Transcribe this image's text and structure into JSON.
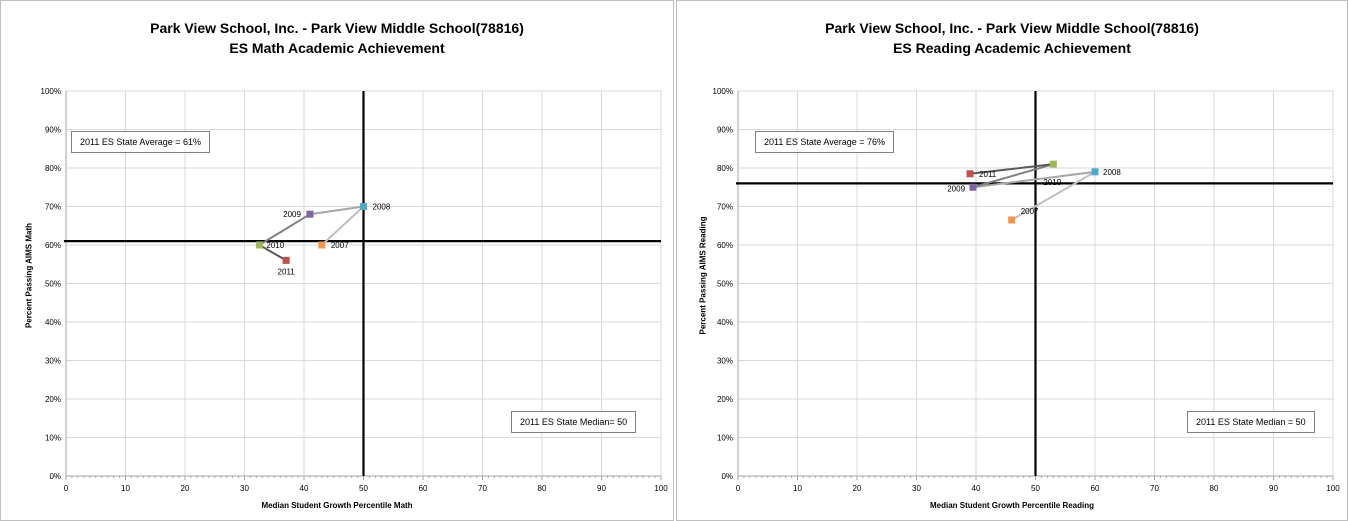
{
  "chart_data": [
    {
      "type": "scatter",
      "title": "Park View School, Inc. - Park View Middle School(78816)",
      "subtitle": "ES Math Academic Achievement",
      "xlabel": "Median Student Growth Percentile Math",
      "ylabel": "Percent Passing AIMS Math",
      "xlim": [
        0,
        100
      ],
      "ylim": [
        0,
        100
      ],
      "x_ticks": [
        "0",
        "10",
        "20",
        "30",
        "40",
        "50",
        "60",
        "70",
        "80",
        "90",
        "100"
      ],
      "y_ticks": [
        "0%",
        "10%",
        "20%",
        "30%",
        "40%",
        "50%",
        "60%",
        "70%",
        "80%",
        "90%",
        "100%"
      ],
      "grid": true,
      "state_average_label": "2011 ES State Average = 61%",
      "state_average_value": 61,
      "state_median_label": "2011 ES State Median= 50",
      "state_median_value": 50,
      "points": [
        {
          "label": "2007",
          "x": 43,
          "y": 60,
          "color": "#f79646"
        },
        {
          "label": "2008",
          "x": 50,
          "y": 70,
          "color": "#4bacc6"
        },
        {
          "label": "2009",
          "x": 41,
          "y": 68,
          "color": "#8064a2"
        },
        {
          "label": "2010",
          "x": 32.5,
          "y": 60,
          "color": "#9bbb59"
        },
        {
          "label": "2011",
          "x": 37,
          "y": 56,
          "color": "#c0504d"
        }
      ]
    },
    {
      "type": "scatter",
      "title": "Park View School, Inc. - Park View Middle School(78816)",
      "subtitle": "ES Reading Academic Achievement",
      "xlabel": "Median Student Growth Percentile Reading",
      "ylabel": "Percent Passing AIMS Reading",
      "xlim": [
        0,
        100
      ],
      "ylim": [
        0,
        100
      ],
      "x_ticks": [
        "0",
        "10",
        "20",
        "30",
        "40",
        "50",
        "60",
        "70",
        "80",
        "90",
        "100"
      ],
      "y_ticks": [
        "0%",
        "10%",
        "20%",
        "30%",
        "40%",
        "50%",
        "60%",
        "70%",
        "80%",
        "90%",
        "100%"
      ],
      "grid": true,
      "state_average_label": "2011 ES State Average = 76%",
      "state_average_value": 76,
      "state_median_label": "2011 ES State Median = 50",
      "state_median_value": 50,
      "points": [
        {
          "label": "2007",
          "x": 46,
          "y": 66.5,
          "color": "#f79646"
        },
        {
          "label": "2008",
          "x": 60,
          "y": 79,
          "color": "#4bacc6"
        },
        {
          "label": "2009",
          "x": 39.5,
          "y": 75,
          "color": "#8064a2"
        },
        {
          "label": "2010",
          "x": 53,
          "y": 81,
          "color": "#9bbb59"
        },
        {
          "label": "2011",
          "x": 39,
          "y": 78.5,
          "color": "#c0504d"
        }
      ]
    }
  ]
}
